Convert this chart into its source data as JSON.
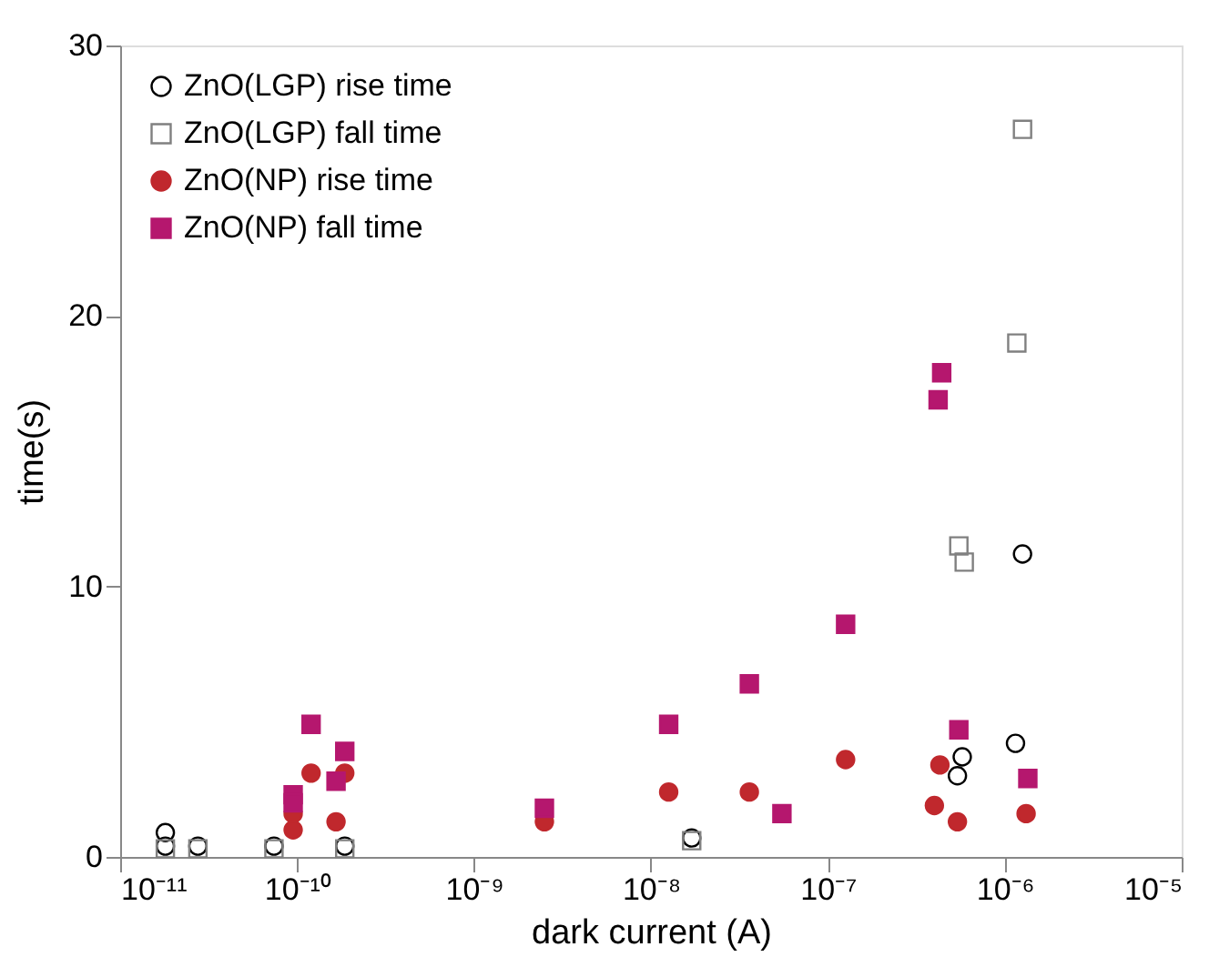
{
  "chart_data": {
    "type": "scatter",
    "xlabel": "dark current (A)",
    "ylabel": "time(s)",
    "log": "x",
    "xlim": [
      1e-11,
      1e-05
    ],
    "xticks": [
      {
        "value": 1e-11,
        "label": "10⁻¹¹"
      },
      {
        "value": 1e-10,
        "label": "10⁻¹⁰"
      },
      {
        "value": 1e-09,
        "label": "10⁻⁹"
      },
      {
        "value": 1e-08,
        "label": "10⁻⁸"
      },
      {
        "value": 1e-07,
        "label": "10⁻⁷"
      },
      {
        "value": 1e-06,
        "label": "10⁻⁶"
      },
      {
        "value": 1e-05,
        "label": "10⁻⁵"
      }
    ],
    "ylim": [
      0,
      30
    ],
    "yticks": [
      0,
      10,
      20,
      30
    ],
    "grid": false,
    "legend": "top left",
    "series": [
      {
        "name": "ZnO(LGP) rise time",
        "color": "#000000",
        "marker": "circle",
        "x": [
          1.8e-11,
          1.8e-11,
          2.75e-11,
          7.4e-11,
          1.86e-10,
          1.7e-08,
          5.4e-07,
          5.75e-07,
          1.15e-06,
          1.26e-06
        ],
        "values": [
          0.9,
          0.4,
          0.4,
          0.4,
          0.4,
          0.7,
          3.0,
          3.7,
          4.2,
          11.2
        ]
      },
      {
        "name": "ZnO(LGP) fall time",
        "color": "#808080",
        "marker": "square",
        "x": [
          1.8e-11,
          2.75e-11,
          7.4e-11,
          1.86e-10,
          1.7e-08,
          5.5e-07,
          5.9e-07,
          1.17e-06,
          1.26e-06
        ],
        "values": [
          0.3,
          0.3,
          0.3,
          0.3,
          0.6,
          11.5,
          10.9,
          19.0,
          26.9
        ]
      },
      {
        "name": "ZnO(NP) rise time",
        "color": "#c0282d",
        "marker": "circle",
        "x": [
          9.5e-11,
          9.5e-11,
          1.2e-10,
          1.66e-10,
          1.86e-10,
          2.5e-09,
          1.26e-08,
          3.6e-08,
          1.26e-07,
          4.3e-07,
          4e-07,
          5.4e-07,
          1.32e-06
        ],
        "values": [
          1.6,
          1.0,
          3.1,
          1.3,
          3.1,
          1.3,
          2.4,
          2.4,
          3.6,
          3.4,
          1.9,
          1.3,
          1.6
        ]
      },
      {
        "name": "ZnO(NP) fall time",
        "color": "#b5176e",
        "marker": "square",
        "x": [
          9.5e-11,
          9.5e-11,
          1.2e-10,
          1.66e-10,
          1.86e-10,
          2.5e-09,
          1.26e-08,
          3.6e-08,
          5.5e-08,
          1.26e-07,
          4.4e-07,
          4.2e-07,
          5.5e-07,
          1.35e-06
        ],
        "values": [
          2.3,
          2.0,
          4.9,
          2.8,
          3.9,
          1.8,
          4.9,
          6.4,
          1.6,
          8.6,
          17.9,
          16.9,
          4.7,
          2.9
        ]
      }
    ]
  }
}
